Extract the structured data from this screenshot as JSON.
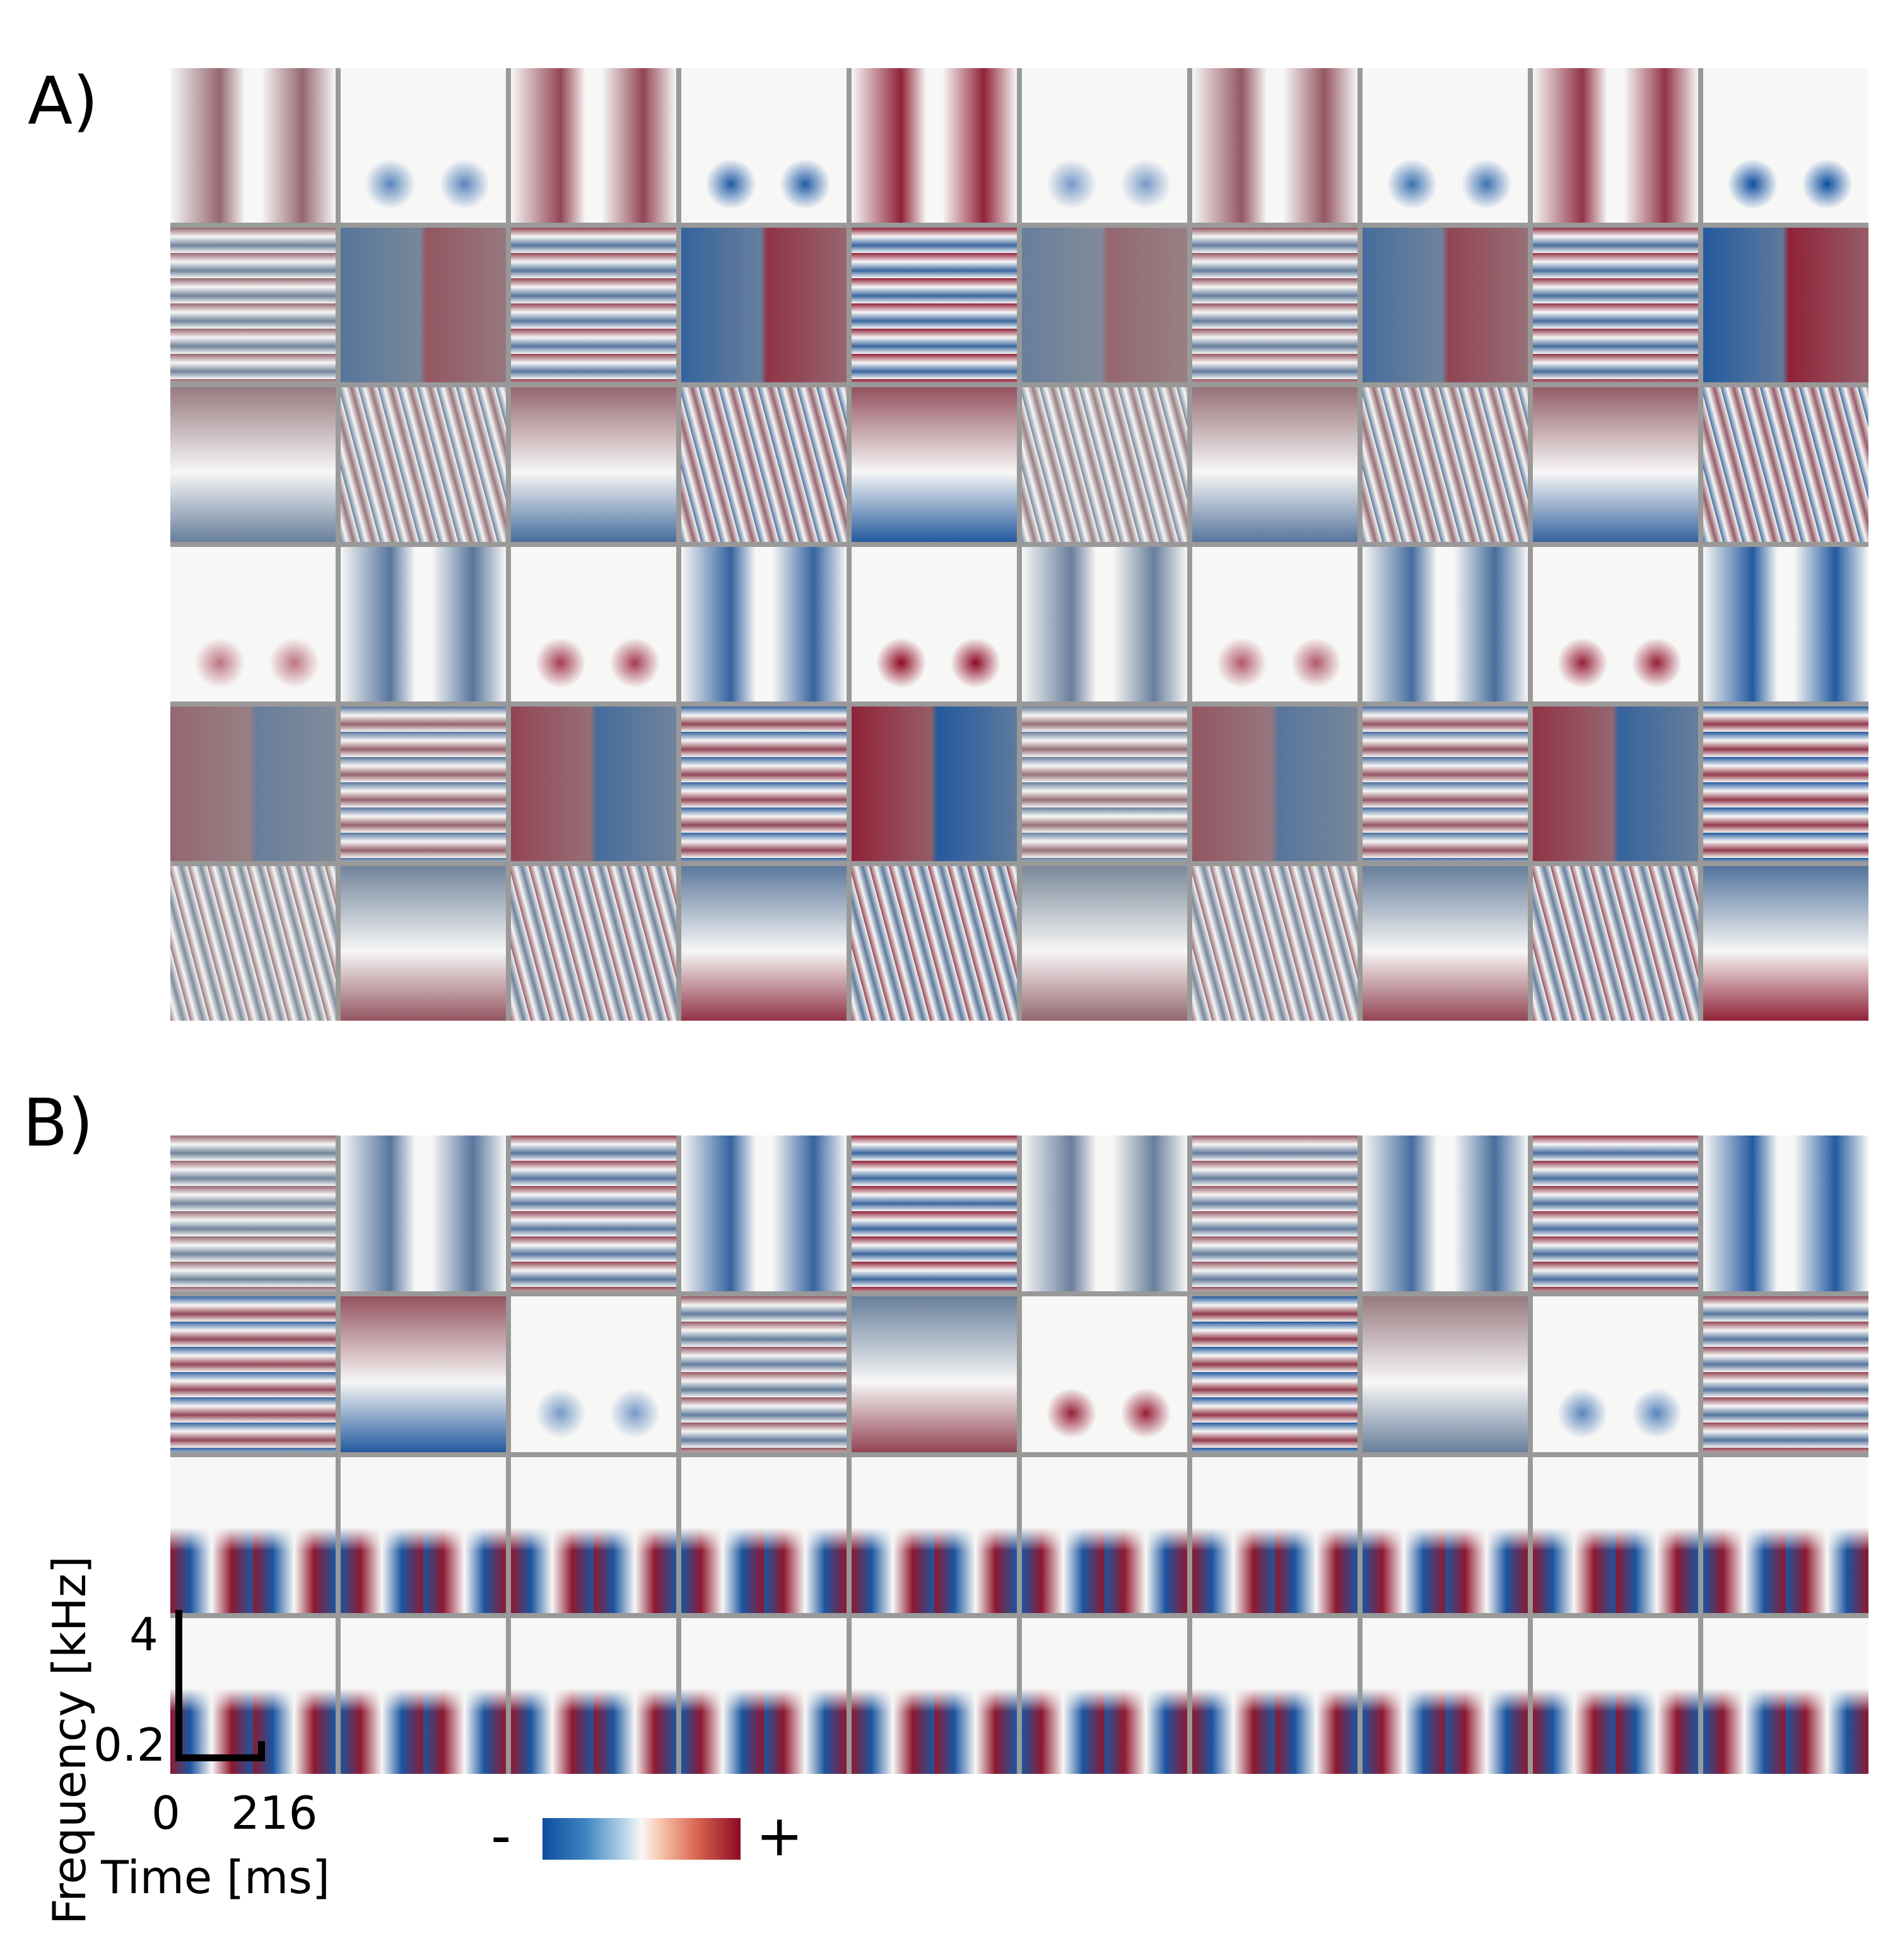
{
  "panels": {
    "a": {
      "label": "A)",
      "rows": 6,
      "cols": 10
    },
    "b": {
      "label": "B)",
      "rows": 4,
      "cols": 10
    }
  },
  "axes": {
    "ylabel": "Frequency [kHz]",
    "yticks": [
      "4",
      "0.2"
    ],
    "xlabel": "Time [ms]",
    "xticks": [
      "0",
      "216"
    ]
  },
  "colorbar": {
    "minus": "-",
    "plus": "+"
  },
  "colormap": {
    "negative": "#0c4da0",
    "mid": "#f7f7f6",
    "positive": "#8e0a24",
    "separator": "#999999"
  }
}
